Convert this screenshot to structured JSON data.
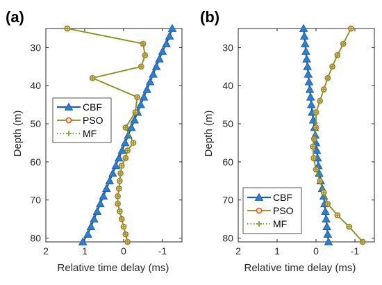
{
  "colors": {
    "cbf": "#1f5fa8",
    "cbf_marker": "#2f7fd0",
    "pso": "#8a8a10",
    "pso_marker_edge": "#d95319",
    "mf": "#77ac30",
    "axis": "#262626",
    "grid": "#e6e6e6"
  },
  "chart_data": [
    {
      "panel_label": "(a)",
      "type": "line",
      "xlabel": "Relative time delay (ms)",
      "ylabel": "Depth (m)",
      "x_reversed": true,
      "y_reversed": true,
      "xlim": [
        2,
        -1.5
      ],
      "ylim": [
        25,
        81
      ],
      "xticks": [
        2,
        1,
        0,
        -1
      ],
      "xtick_labels": [
        "2",
        "1",
        "0",
        "-1"
      ],
      "yticks": [
        30,
        40,
        50,
        60,
        70,
        80
      ],
      "ytick_labels": [
        "30",
        "40",
        "50",
        "60",
        "70",
        "80"
      ],
      "legend": {
        "position": "middle-left",
        "labels": [
          "CBF",
          "PSO",
          "MF"
        ]
      },
      "series": [
        {
          "name": "CBF",
          "marker": "triangle",
          "style": "solid",
          "depth": [
            25,
            27,
            29,
            31,
            33,
            35,
            37,
            39,
            41,
            43,
            45,
            47,
            49,
            51,
            53,
            55,
            57,
            59,
            61,
            63,
            65,
            67,
            69,
            71,
            73,
            75,
            77,
            79,
            81
          ],
          "delay": [
            -1.25,
            -1.18,
            -1.1,
            -1.0,
            -0.92,
            -0.84,
            -0.76,
            -0.68,
            -0.6,
            -0.52,
            -0.44,
            -0.36,
            -0.28,
            -0.2,
            -0.12,
            -0.04,
            0.04,
            0.12,
            0.2,
            0.28,
            0.36,
            0.44,
            0.52,
            0.6,
            0.68,
            0.76,
            0.84,
            0.92,
            1.05
          ]
        },
        {
          "name": "PSO",
          "marker": "circle",
          "style": "solid",
          "depth": [
            25,
            29,
            32,
            35,
            38,
            43,
            47,
            51,
            55,
            57,
            59,
            61,
            63,
            65,
            67,
            69,
            71,
            73,
            75,
            77,
            79,
            81
          ],
          "delay": [
            1.45,
            -0.5,
            -0.55,
            -0.45,
            0.8,
            -0.35,
            -0.3,
            -0.05,
            -0.25,
            -0.1,
            -0.05,
            0.05,
            0.08,
            0.1,
            0.12,
            0.15,
            0.15,
            0.1,
            0.05,
            0.0,
            -0.05,
            -0.1
          ]
        },
        {
          "name": "MF",
          "marker": "plus",
          "style": "dotted",
          "depth": [
            25,
            29,
            32,
            35,
            38,
            43,
            47,
            51,
            55,
            57,
            59,
            61,
            63,
            65,
            67,
            69,
            71,
            73,
            75,
            77,
            79,
            81
          ],
          "delay": [
            1.45,
            -0.5,
            -0.55,
            -0.45,
            0.8,
            -0.35,
            -0.3,
            -0.05,
            -0.25,
            -0.1,
            -0.05,
            0.05,
            0.08,
            0.1,
            0.12,
            0.15,
            0.15,
            0.1,
            0.05,
            0.0,
            -0.05,
            -0.1
          ]
        }
      ]
    },
    {
      "panel_label": "(b)",
      "type": "line",
      "xlabel": "Relative time delay (ms)",
      "ylabel": "Depth (m)",
      "x_reversed": true,
      "y_reversed": true,
      "xlim": [
        2,
        -1.5
      ],
      "ylim": [
        25,
        81
      ],
      "xticks": [
        2,
        1,
        0,
        -1
      ],
      "xtick_labels": [
        "2",
        "1",
        "0",
        "-1"
      ],
      "yticks": [
        30,
        40,
        50,
        60,
        70,
        80
      ],
      "ytick_labels": [
        "30",
        "40",
        "50",
        "60",
        "70",
        "80"
      ],
      "legend": {
        "position": "bottom-left",
        "labels": [
          "CBF",
          "PSO",
          "MF"
        ]
      },
      "series": [
        {
          "name": "CBF",
          "marker": "triangle",
          "style": "solid",
          "depth": [
            25,
            27,
            29,
            31,
            33,
            35,
            37,
            39,
            41,
            43,
            45,
            47,
            49,
            51,
            53,
            55,
            57,
            59,
            61,
            63,
            65,
            67,
            69,
            71,
            73,
            75,
            77,
            79,
            81
          ],
          "delay": [
            0.32,
            0.3,
            0.28,
            0.26,
            0.24,
            0.22,
            0.2,
            0.18,
            0.16,
            0.14,
            0.12,
            0.1,
            0.07,
            0.04,
            0.02,
            0.0,
            -0.02,
            -0.04,
            -0.06,
            -0.08,
            -0.12,
            -0.16,
            -0.2,
            -0.22,
            -0.24,
            -0.26,
            -0.28,
            -0.3,
            -0.32
          ]
        },
        {
          "name": "PSO",
          "marker": "circle",
          "style": "solid",
          "depth": [
            25,
            29,
            32,
            35,
            38,
            41,
            44,
            47,
            51,
            54,
            56,
            59,
            62,
            65,
            68,
            71,
            74,
            77,
            81
          ],
          "delay": [
            -0.9,
            -0.7,
            -0.55,
            -0.42,
            -0.3,
            -0.2,
            -0.1,
            0.0,
            0.0,
            0.05,
            0.08,
            0.06,
            0.0,
            -0.1,
            -0.2,
            -0.3,
            -0.55,
            -0.85,
            -1.2
          ]
        },
        {
          "name": "MF",
          "marker": "plus",
          "style": "dotted",
          "depth": [
            25,
            29,
            32,
            35,
            38,
            41,
            44,
            47,
            51,
            54,
            56,
            59,
            62,
            65,
            68,
            71,
            74,
            77,
            81
          ],
          "delay": [
            -0.9,
            -0.7,
            -0.55,
            -0.42,
            -0.3,
            -0.2,
            -0.1,
            0.0,
            0.0,
            0.05,
            0.08,
            0.06,
            0.0,
            -0.1,
            -0.2,
            -0.3,
            -0.55,
            -0.85,
            -1.2
          ]
        }
      ]
    }
  ]
}
